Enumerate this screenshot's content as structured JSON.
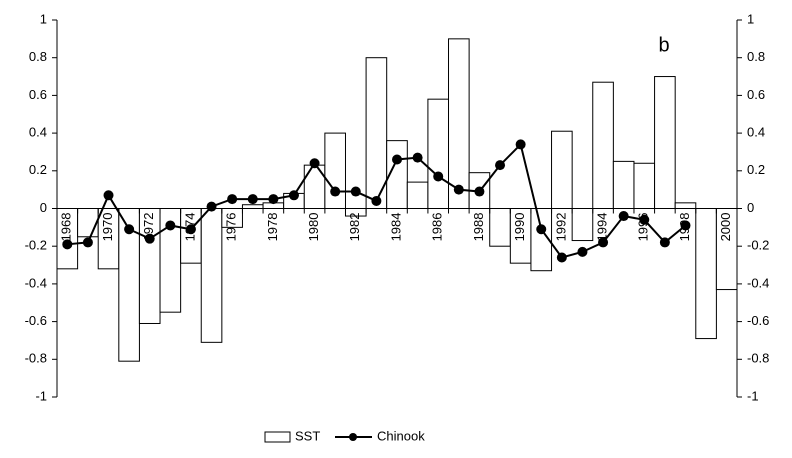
{
  "chart_data": {
    "type": "bar_line",
    "categories": [
      "1968",
      null,
      "1970",
      null,
      "1972",
      null,
      "1974",
      null,
      "1976",
      null,
      "1978",
      null,
      "1980",
      null,
      "1982",
      null,
      "1984",
      null,
      "1986",
      null,
      "1988",
      null,
      "1990",
      null,
      "1992",
      null,
      "1994",
      null,
      "1996",
      null,
      "1998",
      null,
      "2000"
    ],
    "series": [
      {
        "name": "SST",
        "type": "bar",
        "color": "#ffffff",
        "values": [
          -0.32,
          -0.15,
          -0.32,
          -0.81,
          -0.61,
          -0.55,
          -0.29,
          -0.71,
          -0.1,
          0.02,
          0.03,
          0.08,
          0.23,
          0.4,
          -0.04,
          0.8,
          0.36,
          0.14,
          0.58,
          0.9,
          0.19,
          -0.2,
          -0.29,
          -0.33,
          0.41,
          -0.17,
          0.67,
          0.25,
          0.24,
          0.7,
          0.03,
          -0.69,
          -0.43
        ]
      },
      {
        "name": "Chinook",
        "type": "line",
        "color": "#000000",
        "values": [
          -0.19,
          -0.18,
          0.07,
          -0.11,
          -0.16,
          -0.09,
          -0.11,
          0.01,
          0.05,
          0.05,
          0.05,
          0.07,
          0.24,
          0.09,
          0.09,
          0.04,
          0.26,
          0.27,
          0.17,
          0.1,
          0.09,
          0.23,
          0.34,
          -0.11,
          -0.26,
          -0.23,
          -0.18,
          -0.04,
          -0.06,
          -0.18,
          -0.09,
          null,
          null
        ]
      }
    ],
    "annotation": "b",
    "ylim": [
      -1,
      1
    ],
    "yticks": [
      -1,
      -0.8,
      -0.6,
      -0.4,
      -0.2,
      0,
      0.2,
      0.4,
      0.6,
      0.8,
      1
    ],
    "y2lim": [
      -1,
      1
    ],
    "y2ticks": [
      -1,
      -0.8,
      -0.6,
      -0.4,
      -0.2,
      0,
      0.2,
      0.4,
      0.6,
      0.8,
      1
    ],
    "legend": "bottom"
  }
}
